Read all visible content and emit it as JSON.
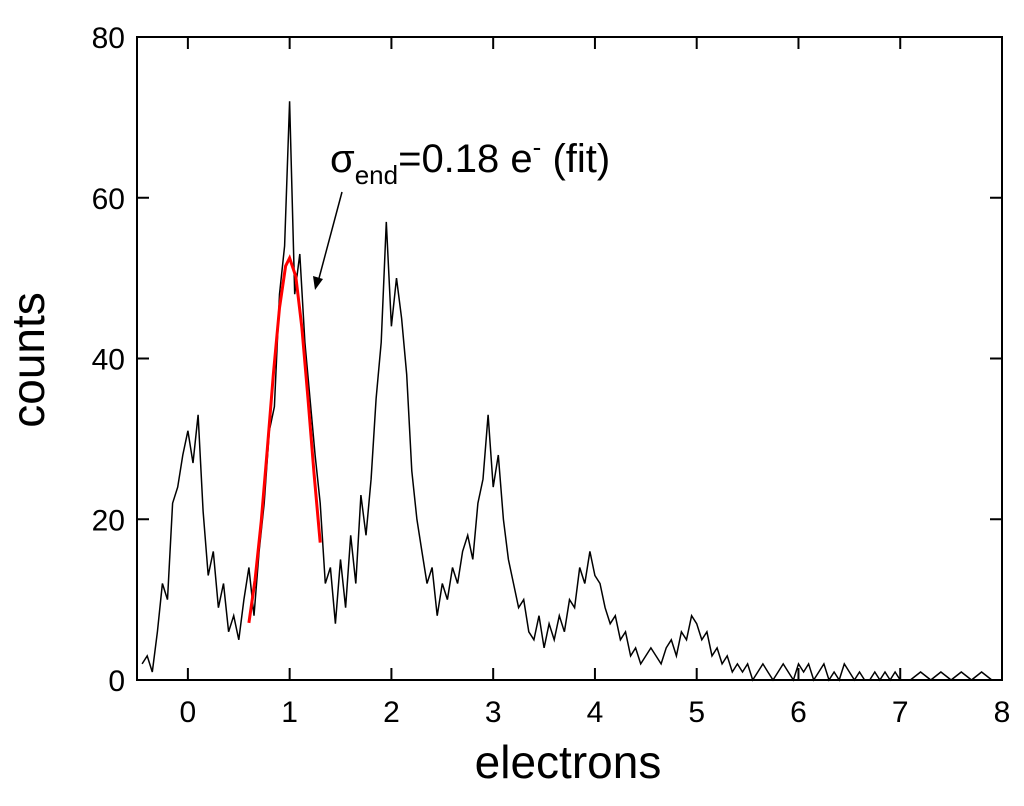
{
  "chart_data": {
    "type": "line",
    "xlabel": "electrons",
    "ylabel": "counts",
    "annotation": {
      "symbol": "σ",
      "subscript": "end",
      "text": "=0.18 e",
      "superscript": "-",
      "tail": " (fit)"
    },
    "xlim": [
      -0.5,
      8
    ],
    "ylim": [
      0,
      80
    ],
    "xticks": [
      0,
      1,
      2,
      3,
      4,
      5,
      6,
      7,
      8
    ],
    "yticks": [
      0,
      20,
      40,
      60,
      80
    ],
    "series": [
      {
        "color": "#000000",
        "x": [
          -0.45,
          -0.4,
          -0.35,
          -0.3,
          -0.25,
          -0.2,
          -0.15,
          -0.1,
          -0.05,
          0,
          0.05,
          0.1,
          0.15,
          0.2,
          0.25,
          0.3,
          0.35,
          0.4,
          0.45,
          0.5,
          0.55,
          0.6,
          0.65,
          0.7,
          0.75,
          0.8,
          0.85,
          0.9,
          0.95,
          1,
          1.05,
          1.1,
          1.15,
          1.2,
          1.25,
          1.3,
          1.35,
          1.4,
          1.45,
          1.5,
          1.55,
          1.6,
          1.65,
          1.7,
          1.75,
          1.8,
          1.85,
          1.9,
          1.95,
          2,
          2.05,
          2.1,
          2.15,
          2.2,
          2.25,
          2.3,
          2.35,
          2.4,
          2.45,
          2.5,
          2.55,
          2.6,
          2.65,
          2.7,
          2.75,
          2.8,
          2.85,
          2.9,
          2.95,
          3,
          3.05,
          3.1,
          3.15,
          3.2,
          3.25,
          3.3,
          3.35,
          3.4,
          3.45,
          3.5,
          3.55,
          3.6,
          3.65,
          3.7,
          3.75,
          3.8,
          3.85,
          3.9,
          3.95,
          4,
          4.05,
          4.1,
          4.15,
          4.2,
          4.25,
          4.3,
          4.35,
          4.4,
          4.45,
          4.5,
          4.55,
          4.6,
          4.65,
          4.7,
          4.75,
          4.8,
          4.85,
          4.9,
          4.95,
          5,
          5.05,
          5.1,
          5.15,
          5.2,
          5.25,
          5.3,
          5.35,
          5.4,
          5.45,
          5.5,
          5.55,
          5.6,
          5.65,
          5.7,
          5.75,
          5.8,
          5.85,
          5.9,
          5.95,
          6,
          6.05,
          6.1,
          6.15,
          6.2,
          6.25,
          6.3,
          6.35,
          6.4,
          6.45,
          6.5,
          6.55,
          6.6,
          6.65,
          6.7,
          6.75,
          6.8,
          6.85,
          6.9,
          6.95,
          7,
          7.1,
          7.2,
          7.3,
          7.4,
          7.5,
          7.6,
          7.7,
          7.8,
          7.9
        ],
        "values": [
          2,
          3,
          1,
          6,
          12,
          10,
          22,
          24,
          28,
          31,
          27,
          33,
          21,
          13,
          16,
          9,
          12,
          6,
          8,
          5,
          10,
          14,
          8,
          16,
          22,
          31,
          34,
          48,
          54,
          72,
          48,
          53,
          42,
          35,
          28,
          22,
          12,
          14,
          7,
          15,
          9,
          18,
          12,
          23,
          18,
          25,
          35,
          42,
          57,
          44,
          50,
          45,
          38,
          26,
          20,
          16,
          12,
          14,
          8,
          12,
          10,
          14,
          12,
          16,
          18,
          15,
          22,
          25,
          33,
          24,
          28,
          20,
          15,
          12,
          9,
          10,
          6,
          5,
          8,
          4,
          7,
          5,
          8,
          6,
          10,
          9,
          14,
          12,
          16,
          13,
          12,
          9,
          7,
          8,
          5,
          6,
          3,
          4,
          2,
          3,
          4,
          3,
          2,
          4,
          5,
          3,
          6,
          5,
          8,
          7,
          5,
          6,
          3,
          4,
          2,
          3,
          1,
          2,
          1,
          2,
          0,
          1,
          2,
          1,
          0,
          1,
          2,
          1,
          0,
          2,
          1,
          2,
          0,
          1,
          2,
          0,
          1,
          0,
          2,
          1,
          0,
          1,
          0,
          0,
          1,
          0,
          1,
          0,
          1,
          0,
          0,
          1,
          0,
          1,
          0,
          1,
          0,
          1,
          0
        ]
      },
      {
        "color": "#ff0000",
        "x": [
          0.6,
          0.66,
          0.72,
          0.78,
          0.84,
          0.9,
          0.96,
          1.0,
          1.06,
          1.12,
          1.18,
          1.24,
          1.3
        ],
        "values": [
          7.1,
          12.4,
          19.7,
          28.7,
          38.1,
          46.3,
          51.5,
          52.5,
          50.2,
          43.8,
          35.0,
          25.6,
          17.1
        ]
      }
    ]
  }
}
